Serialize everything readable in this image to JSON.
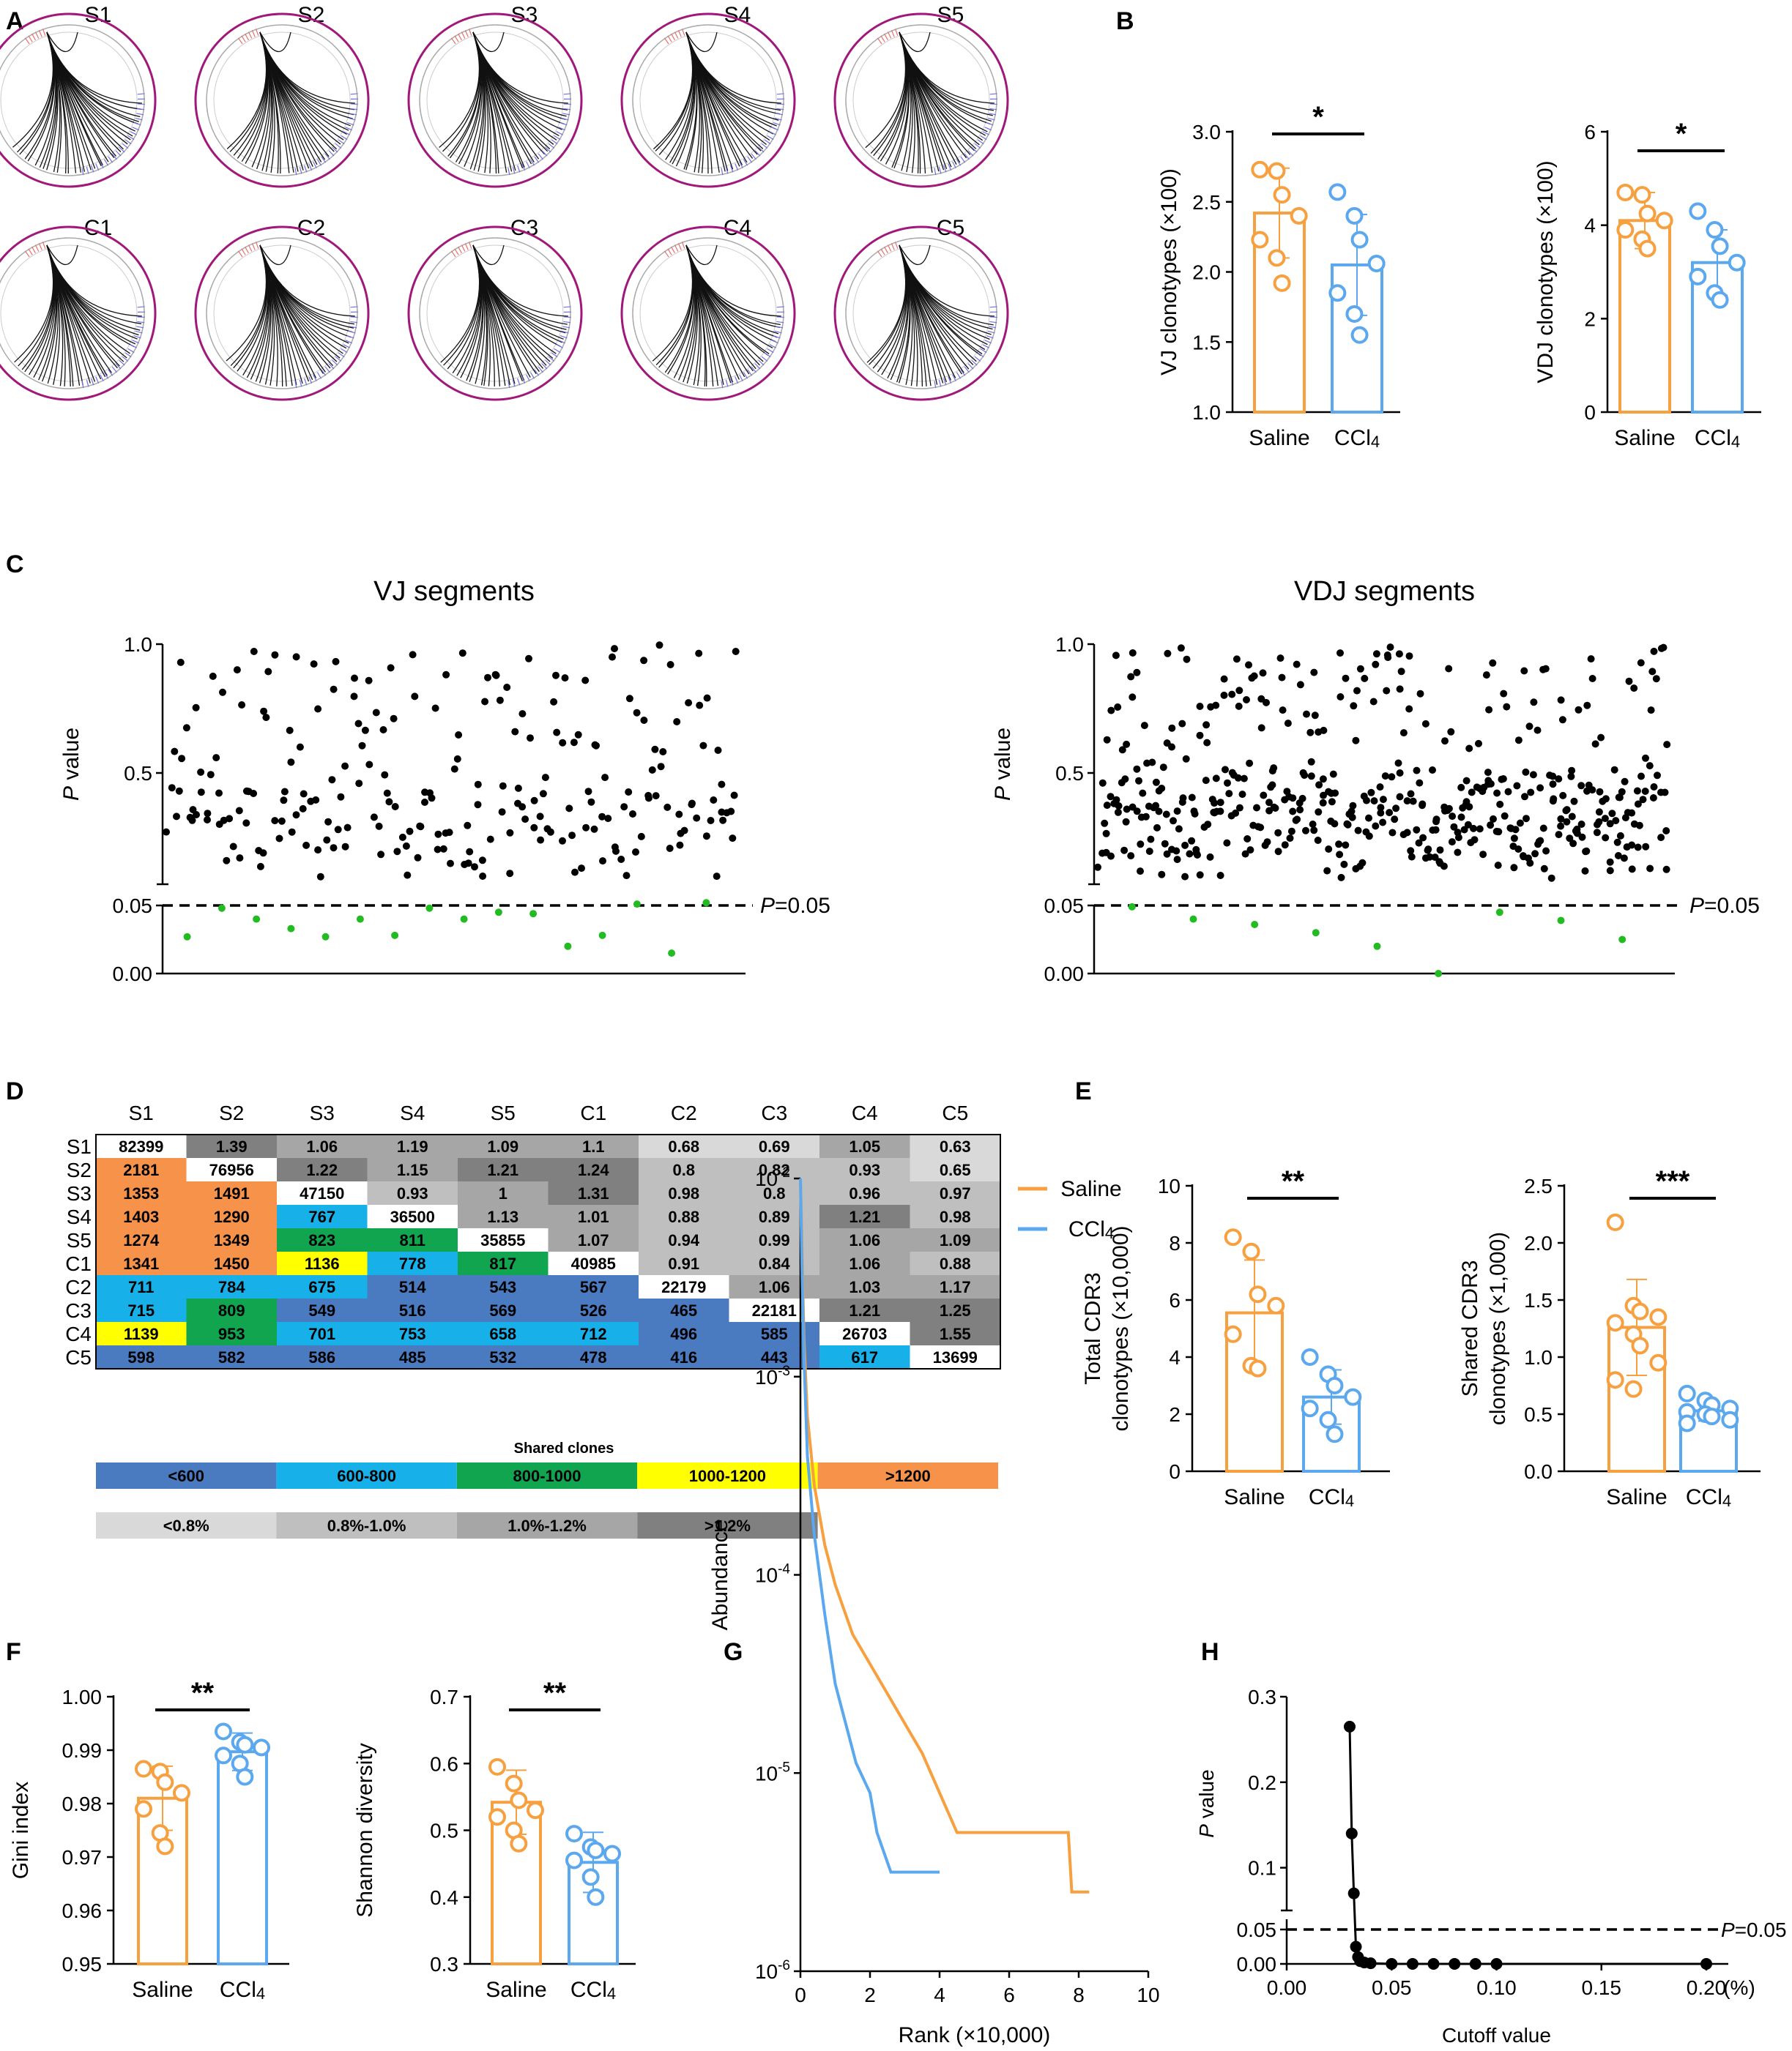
{
  "colors": {
    "saline": "#F7A040",
    "ccl4": "#5BA8EE",
    "sig": "#22BB22",
    "circos": "#A0187A",
    "lt600": "#4A7ABF",
    "c600_800": "#18B0E8",
    "c800_1000": "#11A550",
    "c1000_1200": "#FFFF00",
    "gt1200": "#F7924A",
    "g1": "#D9D9D9",
    "g2": "#BFBFBF",
    "g3": "#A6A6A6",
    "g4": "#808080"
  },
  "panelA": {
    "label": "A",
    "samples": [
      "S1",
      "S2",
      "S3",
      "S4",
      "S5",
      "C1",
      "C2",
      "C3",
      "C4",
      "C5"
    ]
  },
  "panelB": {
    "label": "B"
  },
  "panelC": {
    "label": "C"
  },
  "panelD": {
    "label": "D"
  },
  "panelE": {
    "label": "E"
  },
  "panelF": {
    "label": "F"
  },
  "panelG": {
    "label": "G"
  },
  "panelH": {
    "label": "H"
  },
  "chart_data": [
    {
      "id": "B1",
      "type": "bar",
      "ylabel": "VJ clonotypes (×100)",
      "categories": [
        "Saline",
        "CCl4"
      ],
      "values": [
        2.42,
        2.05
      ],
      "errors": [
        0.32,
        0.36
      ],
      "ylim": [
        1.0,
        3.0
      ],
      "yticks": [
        "1.0",
        "1.5",
        "2.0",
        "2.5",
        "3.0"
      ],
      "tickvals": [
        1.0,
        1.5,
        2.0,
        2.5,
        3.0
      ],
      "significance": "*",
      "points": [
        [
          2.73,
          2.72,
          2.55,
          2.4,
          2.23,
          2.1,
          1.92
        ],
        [
          2.57,
          2.4,
          2.23,
          2.06,
          1.85,
          1.7,
          1.55
        ]
      ]
    },
    {
      "id": "B2",
      "type": "bar",
      "ylabel": "VDJ clonotypes (×100)",
      "categories": [
        "Saline",
        "CCl4"
      ],
      "values": [
        4.1,
        3.2
      ],
      "errors": [
        0.6,
        0.7
      ],
      "ylim": [
        0,
        6
      ],
      "yticks": [
        "0",
        "2",
        "4",
        "6"
      ],
      "tickvals": [
        0,
        2,
        4,
        6
      ],
      "significance": "*",
      "points": [
        [
          4.7,
          4.65,
          4.25,
          4.1,
          3.9,
          3.7,
          3.5
        ],
        [
          4.3,
          3.9,
          3.55,
          3.2,
          2.9,
          2.55,
          2.4
        ]
      ]
    },
    {
      "id": "C1",
      "type": "scatter",
      "title": "VJ segments",
      "ylabel": "P value",
      "yticks": [
        "0.00",
        "0.05",
        "0.5",
        "1.0"
      ],
      "threshold_label": "P=0.05",
      "significant_points": [
        0.027,
        0.048,
        0.04,
        0.033,
        0.027,
        0.04,
        0.028,
        0.048,
        0.04,
        0.045,
        0.044,
        0.02,
        0.028,
        0.051,
        0.015,
        0.052
      ]
    },
    {
      "id": "C2",
      "type": "scatter",
      "title": "VDJ segments",
      "ylabel": "P value",
      "yticks": [
        "0.00",
        "0.05",
        "0.5",
        "1.0"
      ],
      "threshold_label": "P=0.05",
      "significant_points": [
        0.049,
        0.04,
        0.036,
        0.03,
        0.02,
        0.0,
        0.045,
        0.039,
        0.025
      ]
    },
    {
      "id": "D",
      "type": "table",
      "columns": [
        "S1",
        "S2",
        "S3",
        "S4",
        "S5",
        "C1",
        "C2",
        "C3",
        "C4",
        "C5"
      ],
      "rows": [
        "S1",
        "S2",
        "S3",
        "S4",
        "S5",
        "C1",
        "C2",
        "C3",
        "C4",
        "C5"
      ],
      "cells": [
        [
          "82399",
          "1.39",
          "1.06",
          "1.19",
          "1.09",
          "1.1",
          "0.68",
          "0.69",
          "1.05",
          "0.63"
        ],
        [
          "2181",
          "76956",
          "1.22",
          "1.15",
          "1.21",
          "1.24",
          "0.8",
          "0.82",
          "0.93",
          "0.65"
        ],
        [
          "1353",
          "1491",
          "47150",
          "0.93",
          "1",
          "1.31",
          "0.98",
          "0.8",
          "0.96",
          "0.97"
        ],
        [
          "1403",
          "1290",
          "767",
          "36500",
          "1.13",
          "1.01",
          "0.88",
          "0.89",
          "1.21",
          "0.98"
        ],
        [
          "1274",
          "1349",
          "823",
          "811",
          "35855",
          "1.07",
          "0.94",
          "0.99",
          "1.06",
          "1.09"
        ],
        [
          "1341",
          "1450",
          "1136",
          "778",
          "817",
          "40985",
          "0.91",
          "0.84",
          "1.06",
          "0.88"
        ],
        [
          "711",
          "784",
          "675",
          "514",
          "543",
          "567",
          "22179",
          "1.06",
          "1.03",
          "1.17"
        ],
        [
          "715",
          "809",
          "549",
          "516",
          "569",
          "526",
          "465",
          "22181",
          "1.21",
          "1.25"
        ],
        [
          "1139",
          "953",
          "701",
          "753",
          "658",
          "712",
          "496",
          "585",
          "26703",
          "1.55"
        ],
        [
          "598",
          "582",
          "586",
          "485",
          "532",
          "478",
          "416",
          "443",
          "617",
          "13699"
        ]
      ],
      "legend_title": "Shared clones",
      "legend_count": [
        "<600",
        "600-800",
        "800-1000",
        "1000-1200",
        ">1200"
      ],
      "legend_pct": [
        "<0.8%",
        "0.8%-1.0%",
        "1.0%-1.2%",
        ">1.2%"
      ]
    },
    {
      "id": "E1",
      "type": "bar",
      "ylabel": "Total CDR3 clonotypes (×10,000)",
      "categories": [
        "Saline",
        "CCl4"
      ],
      "values": [
        5.55,
        2.6
      ],
      "errors": [
        1.85,
        0.95
      ],
      "ylim": [
        0,
        10
      ],
      "yticks": [
        "0",
        "2",
        "4",
        "6",
        "8",
        "10"
      ],
      "tickvals": [
        0,
        2,
        4,
        6,
        8,
        10
      ],
      "significance": "**",
      "points": [
        [
          8.2,
          7.7,
          6.2,
          5.8,
          4.8,
          3.7,
          3.6
        ],
        [
          4.0,
          3.4,
          3.0,
          2.6,
          2.2,
          1.8,
          1.3
        ]
      ]
    },
    {
      "id": "E2",
      "type": "bar",
      "ylabel": "Shared CDR3 clonotypes (×1,000)",
      "categories": [
        "Saline",
        "CCl4"
      ],
      "values": [
        1.26,
        0.53
      ],
      "errors": [
        0.42,
        0.09
      ],
      "ylim": [
        0,
        2.5
      ],
      "yticks": [
        "0.0",
        "0.5",
        "1.0",
        "1.5",
        "2.0",
        "2.5"
      ],
      "tickvals": [
        0,
        0.5,
        1.0,
        1.5,
        2.0,
        2.5
      ],
      "significance": "***",
      "points": [
        [
          2.18,
          1.45,
          1.4,
          1.35,
          1.3,
          1.2,
          1.1,
          0.95,
          0.8,
          0.72
        ],
        [
          0.68,
          0.62,
          0.58,
          0.55,
          0.52,
          0.5,
          0.48,
          0.45,
          0.42
        ]
      ]
    },
    {
      "id": "F1",
      "type": "bar",
      "ylabel": "Gini index",
      "categories": [
        "Saline",
        "CCl4"
      ],
      "values": [
        0.981,
        0.9897
      ],
      "errors": [
        0.006,
        0.0035
      ],
      "ylim": [
        0.95,
        1.0
      ],
      "yticks": [
        "0.95",
        "0.96",
        "0.97",
        "0.98",
        "0.99",
        "1.00"
      ],
      "tickvals": [
        0.95,
        0.96,
        0.97,
        0.98,
        0.99,
        1.0
      ],
      "significance": "**",
      "points": [
        [
          0.9865,
          0.986,
          0.984,
          0.982,
          0.979,
          0.9745,
          0.972
        ],
        [
          0.9935,
          0.9915,
          0.991,
          0.9905,
          0.989,
          0.9875,
          0.985
        ]
      ]
    },
    {
      "id": "F2",
      "type": "bar",
      "ylabel": "Shannon diversity",
      "categories": [
        "Saline",
        "CCl4"
      ],
      "values": [
        0.542,
        0.452
      ],
      "errors": [
        0.048,
        0.045
      ],
      "ylim": [
        0.3,
        0.7
      ],
      "yticks": [
        "0.3",
        "0.4",
        "0.5",
        "0.6",
        "0.7"
      ],
      "tickvals": [
        0.3,
        0.4,
        0.5,
        0.6,
        0.7
      ],
      "significance": "**",
      "points": [
        [
          0.595,
          0.57,
          0.545,
          0.53,
          0.52,
          0.5,
          0.48
        ],
        [
          0.495,
          0.475,
          0.47,
          0.465,
          0.455,
          0.43,
          0.4
        ]
      ]
    },
    {
      "id": "G",
      "type": "line",
      "xlabel": "Rank (×10,000)",
      "ylabel": "Abundance",
      "xlim": [
        0,
        10
      ],
      "xticks": [
        "0",
        "2",
        "4",
        "6",
        "8",
        "10"
      ],
      "yticks": [
        "10-6",
        "10-5",
        "10-4",
        "10-3",
        "10-2"
      ],
      "legend": [
        "Saline",
        "CCl4"
      ],
      "series": [
        {
          "name": "Saline",
          "x": [
            0,
            0.05,
            0.1,
            0.2,
            0.4,
            0.7,
            1.0,
            1.5,
            2.0,
            2.5,
            3.0,
            3.5,
            4.0,
            4.5,
            5.0,
            6.0,
            7.0,
            7.7,
            7.8,
            8.3
          ],
          "y": [
            -2,
            -2.4,
            -2.8,
            -3.2,
            -3.55,
            -3.85,
            -4.05,
            -4.3,
            -4.45,
            -4.6,
            -4.75,
            -4.9,
            -5.1,
            -5.3,
            -5.3,
            -5.3,
            -5.3,
            -5.3,
            -5.6,
            -5.6
          ]
        },
        {
          "name": "CCl4",
          "x": [
            0,
            0.05,
            0.1,
            0.2,
            0.4,
            0.7,
            1.0,
            1.3,
            1.6,
            2.0,
            2.2,
            2.6,
            3.0,
            4.0
          ],
          "y": [
            -2,
            -2.5,
            -2.9,
            -3.4,
            -3.8,
            -4.2,
            -4.55,
            -4.75,
            -4.95,
            -5.1,
            -5.3,
            -5.5,
            -5.5,
            -5.5
          ]
        }
      ]
    },
    {
      "id": "H",
      "type": "line",
      "xlabel": "Cutoff value",
      "ylabel": "P value",
      "xticks": [
        "0.00",
        "0.05",
        "0.10",
        "0.15",
        "0.20"
      ],
      "xunit": "(%)",
      "yticks": [
        "0.00",
        "0.05",
        "0.1",
        "0.2",
        "0.3"
      ],
      "threshold_label": "P=0.05",
      "x": [
        0.03,
        0.031,
        0.032,
        0.033,
        0.034,
        0.035,
        0.037,
        0.04,
        0.05,
        0.06,
        0.07,
        0.08,
        0.09,
        0.1,
        0.2
      ],
      "y": [
        0.265,
        0.14,
        0.07,
        0.025,
        0.01,
        0.004,
        0.002,
        0.001,
        0.0,
        0.0,
        0.0,
        0.0,
        0.0,
        0.0,
        0.0
      ]
    }
  ]
}
